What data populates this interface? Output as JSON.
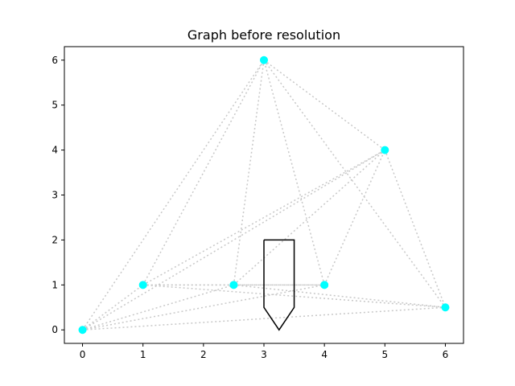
{
  "chart_data": {
    "type": "scatter",
    "title": "Graph before resolution",
    "xlabel": "",
    "ylabel": "",
    "xlim": [
      -0.3,
      6.3
    ],
    "ylim": [
      -0.3,
      6.3
    ],
    "xticks": [
      0,
      1,
      2,
      3,
      4,
      5,
      6
    ],
    "yticks": [
      0,
      1,
      2,
      3,
      4,
      5,
      6
    ],
    "grid": false,
    "node_color": "#00ffff",
    "edge_color": "#c8c8c8",
    "obstacle_color": "#000000",
    "nodes": [
      {
        "x": 0,
        "y": 0
      },
      {
        "x": 1,
        "y": 1
      },
      {
        "x": 2.5,
        "y": 1
      },
      {
        "x": 4,
        "y": 1
      },
      {
        "x": 6,
        "y": 0.5
      },
      {
        "x": 3,
        "y": 6
      },
      {
        "x": 5,
        "y": 4
      }
    ],
    "edges": [
      [
        0,
        1
      ],
      [
        0,
        5
      ],
      [
        0,
        6
      ],
      [
        0,
        2
      ],
      [
        0,
        3
      ],
      [
        0,
        4
      ],
      [
        1,
        5
      ],
      [
        1,
        6
      ],
      [
        1,
        2
      ],
      [
        1,
        3
      ],
      [
        1,
        4
      ],
      [
        2,
        5
      ],
      [
        2,
        6
      ],
      [
        2,
        3
      ],
      [
        2,
        4
      ],
      [
        3,
        5
      ],
      [
        3,
        6
      ],
      [
        5,
        6
      ],
      [
        5,
        4
      ],
      [
        6,
        4
      ]
    ],
    "obstacle": [
      {
        "x": 3,
        "y": 2
      },
      {
        "x": 3.5,
        "y": 2
      },
      {
        "x": 3.5,
        "y": 0.5
      },
      {
        "x": 3.25,
        "y": 0
      },
      {
        "x": 3,
        "y": 0.5
      },
      {
        "x": 3,
        "y": 2
      }
    ]
  }
}
